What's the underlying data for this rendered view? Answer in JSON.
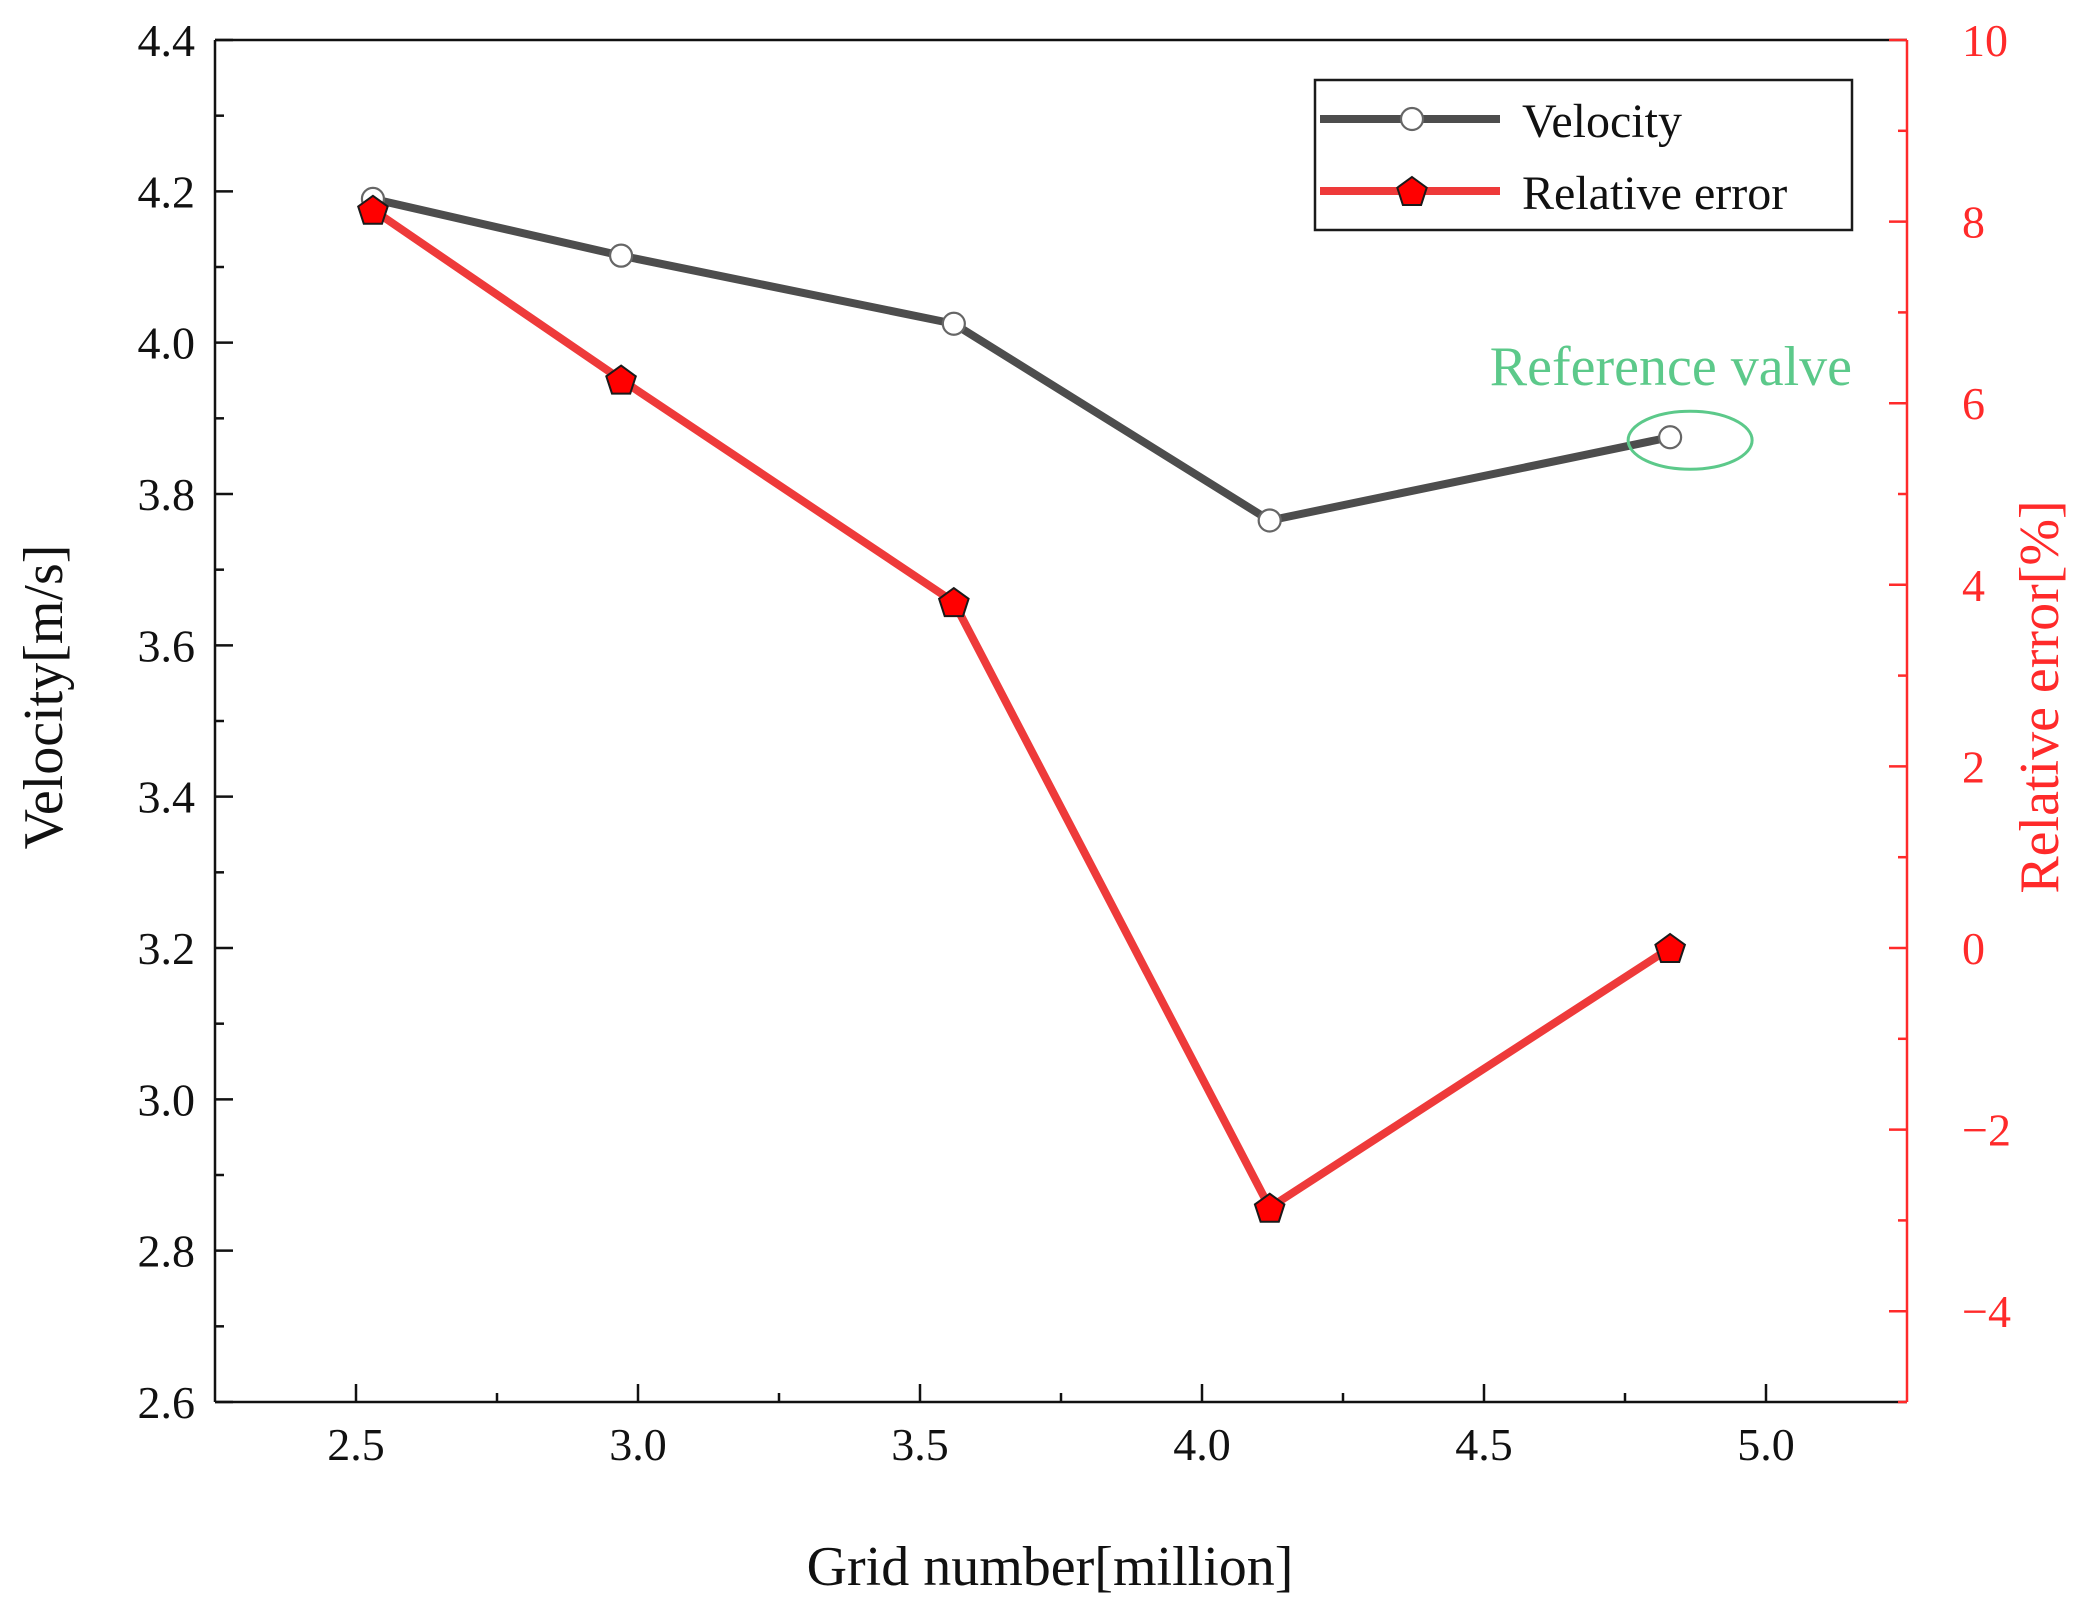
{
  "chart_data": {
    "type": "line",
    "x": [
      2.53,
      2.97,
      3.56,
      4.12,
      4.83
    ],
    "xlabel": "Grid number[million]",
    "xlim": [
      2.25,
      5.25
    ],
    "xticks": [
      "2.5",
      "3.0",
      "3.5",
      "4.0",
      "4.5",
      "5.0"
    ],
    "ylabel": "Velocity[m/s]",
    "ylim": [
      2.6,
      4.4
    ],
    "yticks": [
      "2.6",
      "2.8",
      "3.0",
      "3.2",
      "3.4",
      "3.6",
      "3.8",
      "4.0",
      "4.2",
      "4.4"
    ],
    "y2label": "Relative error[%]",
    "y2lim": [
      -5,
      10
    ],
    "y2ticks": [
      "−4",
      "−2",
      "0",
      "2",
      "4",
      "6",
      "8",
      "10"
    ],
    "series": [
      {
        "name": "Velocity",
        "axis": "left",
        "marker": "open-circle",
        "color": "#4d4d4d",
        "values": [
          4.19,
          4.115,
          4.025,
          3.765,
          3.875
        ]
      },
      {
        "name": "Relative error",
        "axis": "right",
        "marker": "pentagon",
        "color": "#ee3a3a",
        "marker_color": "#ff0000",
        "values": [
          8.13,
          6.26,
          3.81,
          -2.86,
          0
        ]
      }
    ],
    "annotations": [
      {
        "text": "Reference valve",
        "color": "#5cc98a",
        "x": 4.83,
        "y": 3.875
      }
    ],
    "legend_position": "top-right",
    "grid": false
  },
  "colors": {
    "left_axis": "#111111",
    "right_axis": "#ff2a2a"
  }
}
